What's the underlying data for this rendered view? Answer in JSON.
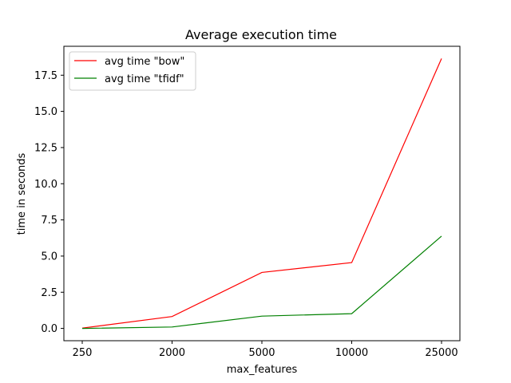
{
  "chart_data": {
    "type": "line",
    "title": "Average execution time",
    "xlabel": "max_features",
    "ylabel": "time in seconds",
    "categories": [
      "250",
      "2000",
      "5000",
      "10000",
      "25000"
    ],
    "ylim": [
      -0.85,
      19.5
    ],
    "yticks": [
      "0.0",
      "2.5",
      "5.0",
      "7.5",
      "10.0",
      "12.5",
      "15.0",
      "17.5"
    ],
    "ytick_values": [
      0,
      2.5,
      5,
      7.5,
      10,
      12.5,
      15,
      17.5
    ],
    "grid": false,
    "legend_position": "top-left",
    "series": [
      {
        "name": "avg time \"bow\"",
        "color": "#ff0000",
        "values": [
          0.02,
          0.82,
          3.87,
          4.55,
          18.65
        ]
      },
      {
        "name": "avg time \"tfidf\"",
        "color": "#008000",
        "values": [
          0.0,
          0.1,
          0.85,
          1.02,
          6.38
        ]
      }
    ]
  }
}
